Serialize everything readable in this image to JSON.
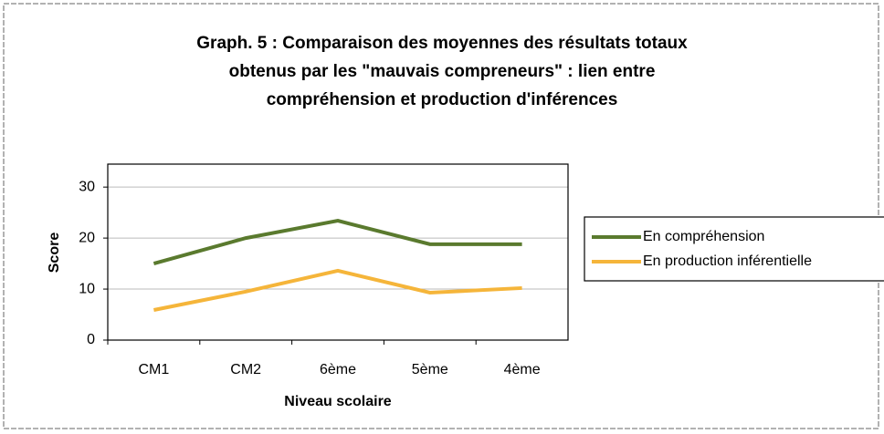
{
  "chart_data": {
    "type": "line",
    "title": [
      "Graph. 5 : Comparaison des moyennes des résultats totaux",
      "obtenus par les \"mauvais compreneurs\" : lien entre",
      "compréhension et production d'inférences"
    ],
    "x_label": "Niveau scolaire",
    "y_label": "Score",
    "categories": [
      "CM1",
      "CM2",
      "6ème",
      "5ème",
      "4ème"
    ],
    "series": [
      {
        "name": "En compréhension",
        "color": "#5a7a2e",
        "values": [
          15,
          20,
          23.4,
          18.8,
          18.8
        ]
      },
      {
        "name": "En production inférentielle",
        "color": "#f5b53a",
        "values": [
          5.9,
          9.5,
          13.6,
          9.3,
          10.2
        ]
      }
    ],
    "ylim": [
      0,
      34.5
    ],
    "yticks": [
      0,
      10,
      20,
      30
    ],
    "grid": true,
    "legend": "right"
  }
}
